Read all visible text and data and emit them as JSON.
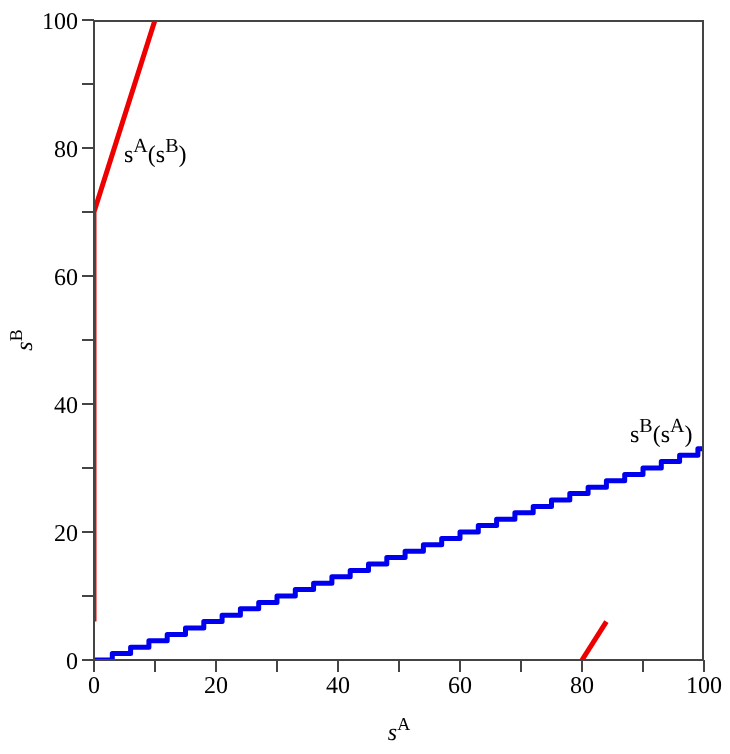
{
  "chart_data": {
    "type": "line",
    "xlabel": "s$^{A}$",
    "ylabel": "s$^{B}$",
    "xlim": [
      0,
      100
    ],
    "ylim": [
      0,
      100
    ],
    "xticks": [
      0,
      {
        "value": 10,
        "label": null
      },
      20,
      {
        "value": 30,
        "label": null
      },
      40,
      {
        "value": 50,
        "label": null
      },
      60,
      {
        "value": 70,
        "label": null
      },
      80,
      {
        "value": 90,
        "label": null
      },
      100
    ],
    "yticks": [
      0,
      {
        "value": 10,
        "label": null
      },
      20,
      {
        "value": 30,
        "label": null
      },
      40,
      {
        "value": 50,
        "label": null
      },
      60,
      {
        "value": 70,
        "label": null
      },
      80,
      {
        "value": 90,
        "label": null
      },
      100
    ],
    "grid": false,
    "marker": "none",
    "line_style": "solid",
    "series": [
      {
        "color": "#ee0000",
        "x": [
          0,
          0,
          10
        ],
        "values": [
          6,
          70,
          100
        ]
      },
      {
        "color": "#ee0000",
        "x": [
          80,
          84
        ],
        "values": [
          0,
          6
        ]
      },
      {
        "type": "step",
        "color": "#0000ee",
        "x": [
          0,
          3,
          6,
          9,
          12,
          15,
          18,
          21,
          24,
          27,
          30,
          33,
          36,
          39,
          42,
          45,
          48,
          51,
          54,
          57,
          60,
          63,
          66,
          69,
          72,
          75,
          78,
          81,
          84,
          87,
          90,
          93,
          96,
          99,
          100
        ],
        "values": [
          0,
          1,
          2,
          3,
          4,
          5,
          6,
          7,
          8,
          9,
          10,
          11,
          12,
          13,
          14,
          15,
          16,
          17,
          18,
          19,
          20,
          21,
          22,
          23,
          24,
          25,
          26,
          27,
          28,
          29,
          30,
          31,
          32,
          33,
          33
        ]
      }
    ],
    "annotations": [
      "s$^{A}$(s$^{B}$)",
      "s$^{B}$(s$^{A}$)"
    ]
  }
}
